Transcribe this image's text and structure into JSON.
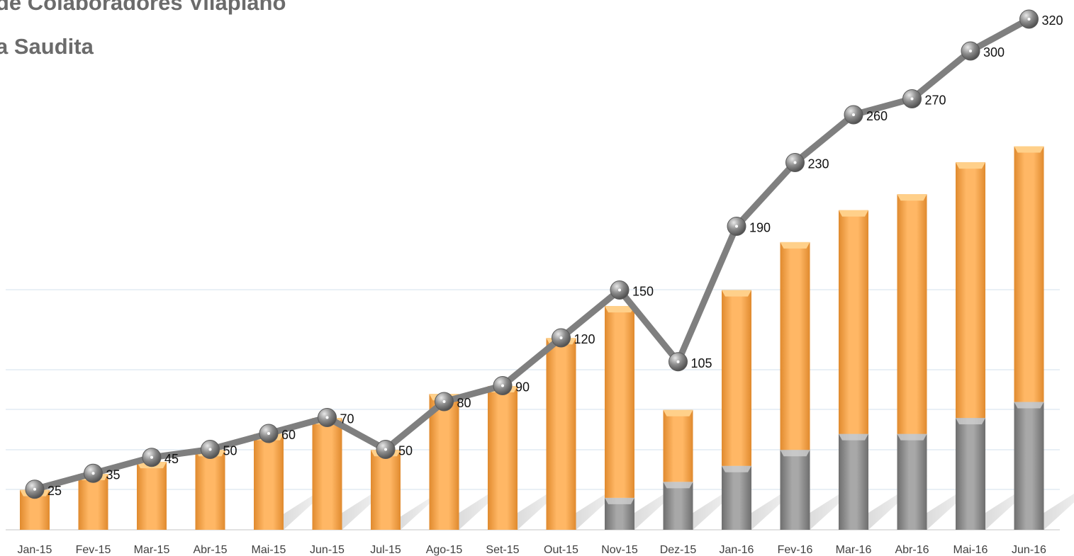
{
  "title_lines": [
    "de Colaboradores Vilaplano",
    "a Saudita"
  ],
  "colors": {
    "orange": "#F5A04A",
    "gray": "#8C8C8C",
    "line": "#7F7F7F",
    "grid": "#DCE6F1"
  },
  "chart_data": {
    "type": "bar",
    "title": "de Colaboradores Vilaplano a Saudita",
    "categories": [
      "Jan-15",
      "Fev-15",
      "Mar-15",
      "Abr-15",
      "Mai-15",
      "Jun-15",
      "Jul-15",
      "Ago-15",
      "Set-15",
      "Out-15",
      "Nov-15",
      "Dez-15",
      "Jan-16",
      "Fev-16",
      "Mar-16",
      "Abr-16",
      "Mai-16",
      "Jun-16"
    ],
    "series": [
      {
        "kind": "bar-stack",
        "values": [
          0,
          0,
          0,
          0,
          0,
          0,
          0,
          0,
          0,
          0,
          8,
          12,
          16,
          20,
          24,
          24,
          28,
          32
        ]
      },
      {
        "kind": "bar-stack",
        "values": [
          10,
          14,
          17,
          20,
          24,
          28,
          20,
          34,
          36,
          48,
          48,
          18,
          44,
          52,
          56,
          60,
          64,
          64
        ]
      },
      {
        "kind": "line",
        "values": [
          25,
          35,
          45,
          50,
          60,
          70,
          50,
          80,
          90,
          120,
          150,
          105,
          190,
          230,
          260,
          270,
          300,
          320
        ]
      }
    ],
    "grid": true,
    "legend": "none"
  }
}
